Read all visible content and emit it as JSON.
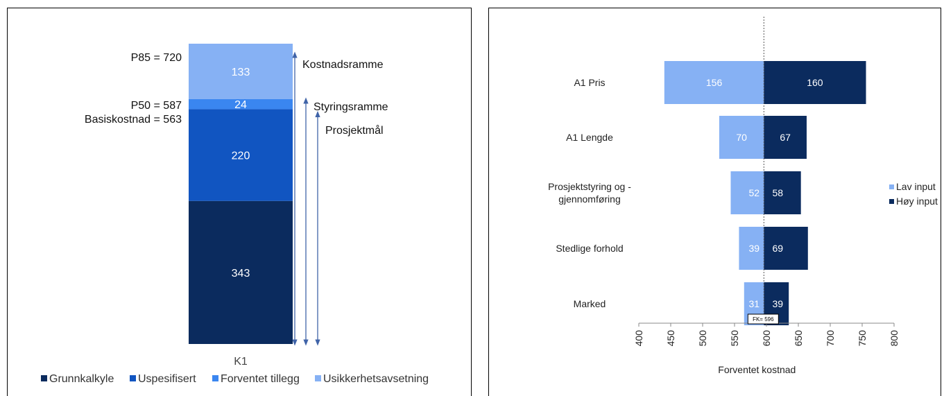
{
  "chart_data": [
    {
      "type": "bar",
      "stacked": true,
      "categories": [
        "K1"
      ],
      "series": [
        {
          "name": "Grunnkalkyle",
          "values": [
            343
          ],
          "color": "#0b2b5e"
        },
        {
          "name": "Uspesifisert",
          "values": [
            220
          ],
          "color": "#1155c1"
        },
        {
          "name": "Forventet tillegg",
          "values": [
            24
          ],
          "color": "#3a86f0"
        },
        {
          "name": "Usikkerhetsavsetning",
          "values": [
            133
          ],
          "color": "#86b1f4"
        }
      ],
      "annotations": {
        "p85_label": "P85 = 720",
        "p50_label": "P50 = 587",
        "basis_label": "Basiskostnad = 563",
        "range_labels": [
          "Kostnadsramme",
          "Styringsramme",
          "Prosjektmål"
        ]
      },
      "ylim": [
        0,
        720
      ],
      "legend": "bottom",
      "grid": false
    },
    {
      "type": "bar",
      "orientation": "horizontal",
      "variant": "tornado",
      "categories": [
        "A1 Pris",
        "A1 Lengde",
        "Prosjektstyring og - gjennomføring",
        "Stedlige forhold",
        "Marked"
      ],
      "category_lines": [
        [
          "A1 Pris"
        ],
        [
          "A1 Lengde"
        ],
        [
          "Prosjektstyring og -",
          "gjennomføring"
        ],
        [
          "Stedlige forhold"
        ],
        [
          "Marked"
        ]
      ],
      "series": [
        {
          "name": "Lav input",
          "values": [
            156,
            70,
            52,
            39,
            31
          ],
          "color": "#86b1f4"
        },
        {
          "name": "Høy input",
          "values": [
            160,
            67,
            58,
            69,
            39
          ],
          "color": "#0b2b5e"
        }
      ],
      "center_value": 596,
      "center_label": "FK= 596",
      "xlabel": "Forventet kostnad",
      "xlim": [
        400,
        800
      ],
      "xticks": [
        400,
        450,
        500,
        550,
        600,
        650,
        700,
        750,
        800
      ],
      "legend": "right",
      "grid": false
    }
  ]
}
